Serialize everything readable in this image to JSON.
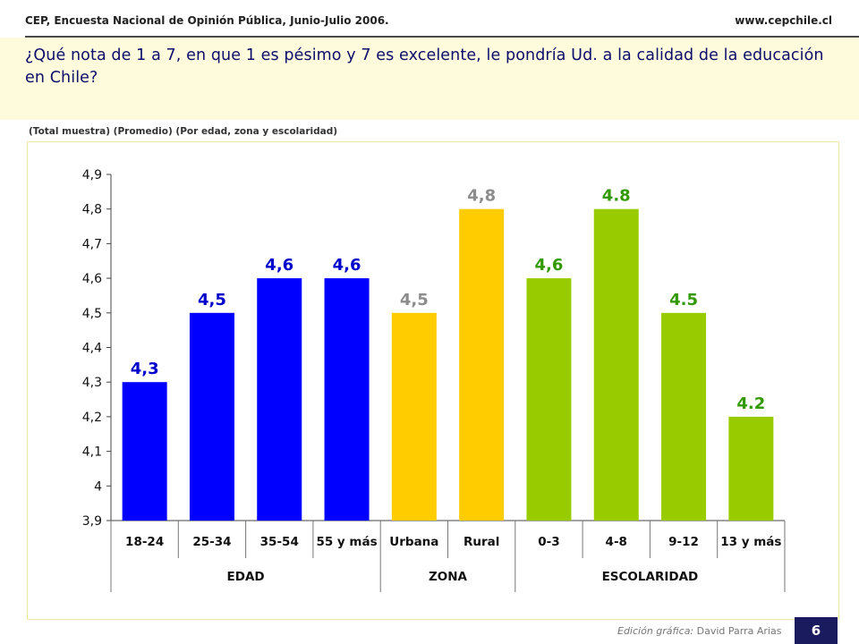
{
  "header": {
    "source": "CEP, Encuesta Nacional de Opinión Pública, Junio-Julio 2006.",
    "website": "www.cepchile.cl"
  },
  "question": "¿Qué nota de 1 a 7, en que 1 es pésimo y 7 es excelente, le pondría Ud. a la calidad de la educación en Chile?",
  "subtitle": "(Total muestra) (Promedio) (Por edad, zona y escolaridad)",
  "footer": {
    "credit_prefix": "Edición gráfica:",
    "credit_name": " David Parra Arias",
    "page_number": "6"
  },
  "chart_data": {
    "type": "bar",
    "ylim": [
      3.9,
      4.9
    ],
    "yticks": [
      "3,9",
      "4",
      "4,1",
      "4,2",
      "4,3",
      "4,4",
      "4,5",
      "4,6",
      "4,7",
      "4,8",
      "4,9"
    ],
    "ytick_values": [
      3.9,
      4.0,
      4.1,
      4.2,
      4.3,
      4.4,
      4.5,
      4.6,
      4.7,
      4.8,
      4.9
    ],
    "categories": [
      "18-24",
      "25-34",
      "35-54",
      "55 y más",
      "Urbana",
      "Rural",
      "0-3",
      "4-8",
      "9-12",
      "13 y más"
    ],
    "values": [
      4.3,
      4.5,
      4.6,
      4.6,
      4.5,
      4.8,
      4.6,
      4.8,
      4.5,
      4.2
    ],
    "value_labels": [
      "4,3",
      "4,5",
      "4,6",
      "4,6",
      "4,5",
      "4,8",
      "4,6",
      "4.8",
      "4.5",
      "4.2"
    ],
    "groups": [
      {
        "name": "EDAD",
        "count": 4,
        "bar_color": "#0000ff",
        "label_color": "#0000cc"
      },
      {
        "name": "ZONA",
        "count": 2,
        "bar_color": "#ffcc00",
        "label_color": "#8c8c8c"
      },
      {
        "name": "ESCOLARIDAD",
        "count": 4,
        "bar_color": "#99cc00",
        "label_color": "#339900"
      }
    ],
    "grid": false
  }
}
